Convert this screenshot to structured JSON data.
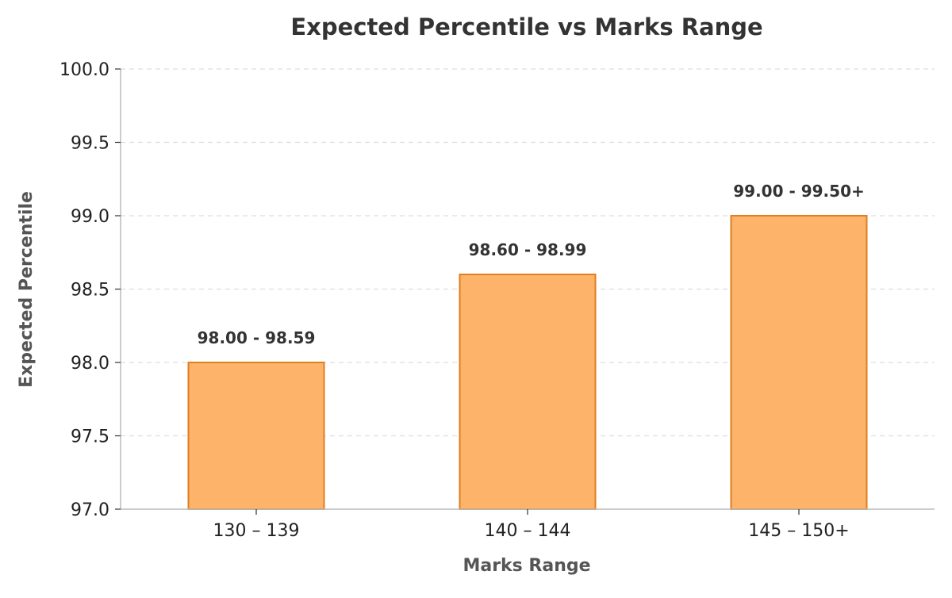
{
  "chart_data": {
    "type": "bar",
    "title": "Expected Percentile vs Marks Range",
    "xlabel": "Marks Range",
    "ylabel": "Expected Percentile",
    "categories": [
      "130 – 139",
      "140 – 144",
      "145 – 150+"
    ],
    "values": [
      98.0,
      98.6,
      99.0
    ],
    "data_labels": [
      "98.00 - 98.59",
      "98.60 - 98.99",
      "99.00 - 99.50+"
    ],
    "ylim": [
      97.0,
      100.0
    ],
    "yticks": [
      "97.0",
      "97.5",
      "98.0",
      "98.5",
      "99.0",
      "99.5",
      "100.0"
    ],
    "grid": "horizontal dashed",
    "legend": "none",
    "colors": {
      "bar_fill": "#FDB36A",
      "bar_edge": "#E07E22",
      "title": "#333333",
      "axis_label": "#555555",
      "grid": "#DDDDDD",
      "axis": "#BBBBBB"
    }
  }
}
